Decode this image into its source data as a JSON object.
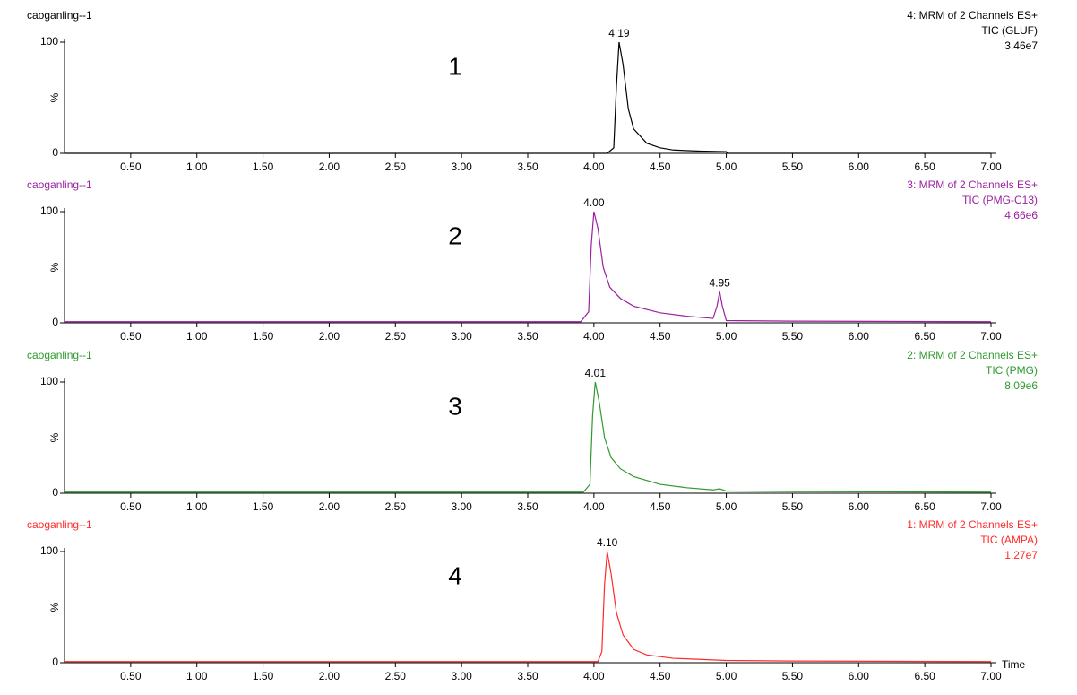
{
  "chart_data": [
    {
      "type": "line",
      "number": "1",
      "sample": "caoganling--1",
      "channel": "4: MRM of 2 Channels ES+",
      "trace": "TIC (GLUF)",
      "intensity": "3.46e7",
      "ylabel": "%",
      "color": "#000000",
      "header_color": "#000000",
      "xlim": [
        0,
        7.0
      ],
      "ylim": [
        0,
        100
      ],
      "xticks": [
        {
          "value": 0.5,
          "label": "0.50"
        },
        {
          "value": 1.0,
          "label": "1.00"
        },
        {
          "value": 1.5,
          "label": "1.50"
        },
        {
          "value": 2.0,
          "label": "2.00"
        },
        {
          "value": 2.5,
          "label": "2.50"
        },
        {
          "value": 3.0,
          "label": "3.00"
        },
        {
          "value": 3.5,
          "label": "3.50"
        },
        {
          "value": 4.0,
          "label": "4.00"
        },
        {
          "value": 4.5,
          "label": "4.50"
        },
        {
          "value": 5.0,
          "label": "5.00"
        },
        {
          "value": 5.5,
          "label": "5.50"
        },
        {
          "value": 6.0,
          "label": "6.00"
        },
        {
          "value": 6.5,
          "label": "6.50"
        },
        {
          "value": 7.0,
          "label": "7.00"
        }
      ],
      "yticks": [
        0,
        100
      ],
      "peaks": [
        {
          "x": 4.19,
          "y": 100,
          "label": "4.19"
        }
      ],
      "x": [
        0.0,
        4.1,
        4.15,
        4.17,
        4.19,
        4.22,
        4.26,
        4.3,
        4.4,
        4.5,
        4.6,
        4.8,
        5.0,
        5.01,
        7.0
      ],
      "values": [
        0,
        0,
        5,
        60,
        100,
        80,
        40,
        22,
        9,
        5,
        3,
        2,
        1.5,
        0,
        0
      ]
    },
    {
      "type": "line",
      "number": "2",
      "sample": "caoganling--1",
      "channel": "3: MRM of 2 Channels ES+",
      "trace": "TIC (PMG-C13)",
      "intensity": "4.66e6",
      "ylabel": "%",
      "color": "#9b1fa0",
      "header_color": "#9b1fa0",
      "xlim": [
        0,
        7.0
      ],
      "ylim": [
        0,
        100
      ],
      "xticks": [
        {
          "value": 0.5,
          "label": "0.50"
        },
        {
          "value": 1.0,
          "label": "1.00"
        },
        {
          "value": 1.5,
          "label": "1.50"
        },
        {
          "value": 2.0,
          "label": "2.00"
        },
        {
          "value": 2.5,
          "label": "2.50"
        },
        {
          "value": 3.0,
          "label": "3.00"
        },
        {
          "value": 3.5,
          "label": "3.50"
        },
        {
          "value": 4.0,
          "label": "4.00"
        },
        {
          "value": 4.5,
          "label": "4.50"
        },
        {
          "value": 5.0,
          "label": "5.00"
        },
        {
          "value": 5.5,
          "label": "5.50"
        },
        {
          "value": 6.0,
          "label": "6.00"
        },
        {
          "value": 6.5,
          "label": "6.50"
        },
        {
          "value": 7.0,
          "label": "7.00"
        }
      ],
      "yticks": [
        0,
        100
      ],
      "peaks": [
        {
          "x": 4.0,
          "y": 100,
          "label": "4.00"
        },
        {
          "x": 4.95,
          "y": 28,
          "label": "4.95"
        }
      ],
      "x": [
        0.0,
        3.9,
        3.96,
        3.98,
        4.0,
        4.03,
        4.07,
        4.12,
        4.2,
        4.3,
        4.5,
        4.7,
        4.9,
        4.93,
        4.95,
        4.97,
        5.0,
        5.5,
        7.0
      ],
      "values": [
        1,
        1,
        10,
        70,
        100,
        85,
        50,
        32,
        22,
        15,
        9,
        6,
        4,
        15,
        28,
        15,
        2,
        1.5,
        1
      ]
    },
    {
      "type": "line",
      "number": "3",
      "sample": "caoganling--1",
      "channel": "2: MRM of 2 Channels ES+",
      "trace": "TIC (PMG)",
      "intensity": "8.09e6",
      "ylabel": "%",
      "color": "#2e9a2e",
      "header_color": "#2e9a2e",
      "xlim": [
        0,
        7.0
      ],
      "ylim": [
        0,
        100
      ],
      "xticks": [
        {
          "value": 0.5,
          "label": "0.50"
        },
        {
          "value": 1.0,
          "label": "1.00"
        },
        {
          "value": 1.5,
          "label": "1.50"
        },
        {
          "value": 2.0,
          "label": "2.00"
        },
        {
          "value": 2.5,
          "label": "2.50"
        },
        {
          "value": 3.0,
          "label": "3.00"
        },
        {
          "value": 3.5,
          "label": "3.50"
        },
        {
          "value": 4.0,
          "label": "4.00"
        },
        {
          "value": 4.5,
          "label": "4.50"
        },
        {
          "value": 5.0,
          "label": "5.00"
        },
        {
          "value": 5.5,
          "label": "5.50"
        },
        {
          "value": 6.0,
          "label": "6.00"
        },
        {
          "value": 6.5,
          "label": "6.50"
        },
        {
          "value": 7.0,
          "label": "7.00"
        }
      ],
      "yticks": [
        0,
        100
      ],
      "peaks": [
        {
          "x": 4.01,
          "y": 100,
          "label": "4.01"
        }
      ],
      "x": [
        0.0,
        3.92,
        3.97,
        3.99,
        4.01,
        4.04,
        4.08,
        4.13,
        4.2,
        4.3,
        4.5,
        4.7,
        4.9,
        4.95,
        5.0,
        5.5,
        7.0
      ],
      "values": [
        1,
        1,
        8,
        70,
        100,
        82,
        50,
        32,
        22,
        15,
        8,
        5,
        3,
        4,
        2,
        1.5,
        1
      ]
    },
    {
      "type": "line",
      "number": "4",
      "sample": "caoganling--1",
      "channel": "1: MRM of 2 Channels ES+",
      "trace": "TIC (AMPA)",
      "intensity": "1.27e7",
      "ylabel": "%",
      "xlabel": "Time",
      "color": "#ff2a2a",
      "header_color": "#ff2a2a",
      "xlim": [
        0,
        7.0
      ],
      "ylim": [
        0,
        100
      ],
      "xticks": [
        {
          "value": 0.5,
          "label": "0.50"
        },
        {
          "value": 1.0,
          "label": "1.00"
        },
        {
          "value": 1.5,
          "label": "1.50"
        },
        {
          "value": 2.0,
          "label": "2.00"
        },
        {
          "value": 2.5,
          "label": "2.50"
        },
        {
          "value": 3.0,
          "label": "3.00"
        },
        {
          "value": 3.5,
          "label": "3.50"
        },
        {
          "value": 4.0,
          "label": "4.00"
        },
        {
          "value": 4.5,
          "label": "4.50"
        },
        {
          "value": 5.0,
          "label": "5.00"
        },
        {
          "value": 5.5,
          "label": "5.50"
        },
        {
          "value": 6.0,
          "label": "6.00"
        },
        {
          "value": 6.5,
          "label": "6.50"
        },
        {
          "value": 7.0,
          "label": "7.00"
        }
      ],
      "yticks": [
        0,
        100
      ],
      "peaks": [
        {
          "x": 4.1,
          "y": 100,
          "label": "4.10"
        }
      ],
      "x": [
        0.0,
        4.03,
        4.06,
        4.08,
        4.1,
        4.13,
        4.17,
        4.22,
        4.3,
        4.4,
        4.6,
        4.8,
        5.0,
        5.5,
        7.0
      ],
      "values": [
        1,
        1,
        10,
        70,
        100,
        80,
        45,
        25,
        12,
        7,
        4,
        3,
        2,
        1.5,
        1
      ]
    }
  ]
}
